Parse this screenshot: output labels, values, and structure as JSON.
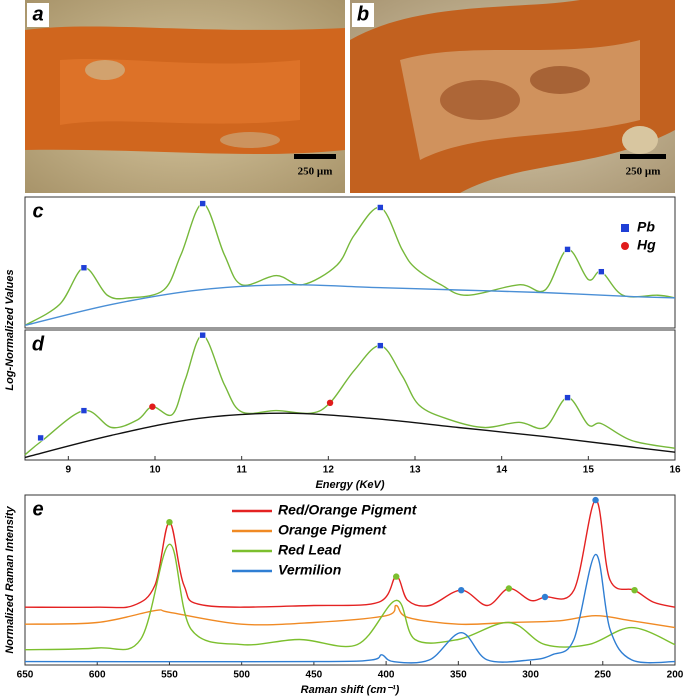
{
  "photos": [
    {
      "label": "a",
      "scale_bar": "250 µm"
    },
    {
      "label": "b",
      "scale_bar": "250 µm"
    }
  ],
  "chart_data": [
    {
      "type": "line",
      "label": "c",
      "ylabel": "Log-Normalized Values",
      "xlim": [
        8.5,
        16
      ],
      "ylim": [
        0,
        1
      ],
      "lines": [
        {
          "color": "#76b83a",
          "x": [
            8.5,
            8.9,
            9.18,
            9.45,
            9.7,
            10.1,
            10.3,
            10.55,
            10.8,
            11.0,
            11.4,
            11.7,
            12.1,
            12.3,
            12.6,
            12.85,
            13.0,
            13.3,
            13.6,
            14.2,
            14.5,
            14.76,
            15.0,
            15.15,
            15.4,
            15.8,
            16
          ],
          "values": [
            0.02,
            0.18,
            0.46,
            0.25,
            0.23,
            0.29,
            0.56,
            0.95,
            0.56,
            0.33,
            0.4,
            0.33,
            0.48,
            0.71,
            0.92,
            0.6,
            0.46,
            0.33,
            0.25,
            0.33,
            0.29,
            0.6,
            0.37,
            0.43,
            0.25,
            0.25,
            0.23
          ]
        },
        {
          "color": "#4a8fd6",
          "x": [
            8.5,
            9.5,
            10.5,
            11.5,
            12.5,
            13.5,
            14.5,
            15.5,
            16
          ],
          "values": [
            0.02,
            0.18,
            0.29,
            0.33,
            0.31,
            0.29,
            0.27,
            0.24,
            0.23
          ]
        }
      ],
      "markers": [
        {
          "name": "Pb",
          "color": "#1f3fd6",
          "marker": "square",
          "x": [
            9.18,
            10.55,
            12.6,
            14.76,
            15.15
          ],
          "values": [
            0.46,
            0.95,
            0.92,
            0.6,
            0.43
          ]
        },
        {
          "name": "Hg",
          "color": "#e01b1b",
          "marker": "circle",
          "x": [],
          "values": []
        }
      ]
    },
    {
      "type": "line",
      "label": "d",
      "xlabel": "Energy (KeV)",
      "xlim": [
        8.5,
        16
      ],
      "ylim": [
        0,
        1
      ],
      "xticks": [
        9,
        10,
        11,
        12,
        13,
        14,
        15,
        16
      ],
      "lines": [
        {
          "color": "#76b83a",
          "x": [
            8.5,
            8.7,
            9.18,
            9.5,
            9.8,
            9.97,
            10.2,
            10.35,
            10.55,
            10.8,
            11.0,
            11.4,
            11.8,
            12.02,
            12.3,
            12.6,
            12.85,
            13.05,
            13.4,
            13.8,
            14.2,
            14.5,
            14.76,
            15.0,
            15.15,
            15.5,
            16
          ],
          "values": [
            0.04,
            0.15,
            0.38,
            0.25,
            0.31,
            0.41,
            0.35,
            0.62,
            0.96,
            0.58,
            0.37,
            0.38,
            0.36,
            0.44,
            0.69,
            0.88,
            0.65,
            0.42,
            0.31,
            0.25,
            0.29,
            0.25,
            0.48,
            0.27,
            0.28,
            0.15,
            0.09
          ]
        },
        {
          "color": "#111111",
          "x": [
            8.5,
            9.5,
            10.5,
            11.5,
            12.5,
            13.5,
            14.5,
            15.5,
            16
          ],
          "values": [
            0.02,
            0.19,
            0.32,
            0.36,
            0.32,
            0.25,
            0.18,
            0.1,
            0.06
          ]
        }
      ],
      "markers": [
        {
          "color": "#1f3fd6",
          "marker": "square",
          "x": [
            8.68,
            9.18,
            10.55,
            12.6,
            14.76
          ],
          "values": [
            0.17,
            0.38,
            0.96,
            0.88,
            0.48
          ]
        },
        {
          "color": "#e01b1b",
          "marker": "circle",
          "x": [
            9.97,
            12.02
          ],
          "values": [
            0.41,
            0.44
          ]
        }
      ]
    },
    {
      "type": "line",
      "label": "e",
      "ylabel": "Normalized Raman Intensity",
      "xlabel": "Raman shift (cm⁻¹)",
      "xlim": [
        650,
        200
      ],
      "ylim": [
        0,
        1
      ],
      "xticks": [
        650,
        600,
        550,
        500,
        450,
        400,
        350,
        300,
        250,
        200
      ],
      "lines": [
        {
          "name": "Red/Orange Pigment",
          "color": "#e42222",
          "x": [
            650,
            600,
            575,
            560,
            550,
            540,
            525,
            450,
            405,
            393,
            385,
            370,
            348,
            330,
            315,
            300,
            290,
            270,
            255,
            245,
            228,
            215,
            200
          ],
          "values": [
            0.34,
            0.34,
            0.35,
            0.47,
            0.84,
            0.47,
            0.35,
            0.35,
            0.37,
            0.52,
            0.38,
            0.35,
            0.44,
            0.35,
            0.45,
            0.38,
            0.4,
            0.44,
            0.97,
            0.5,
            0.44,
            0.37,
            0.34
          ]
        },
        {
          "name": "Orange Pigment",
          "color": "#f08a24",
          "x": [
            650,
            600,
            560,
            550,
            500,
            450,
            400,
            393,
            385,
            350,
            315,
            280,
            255,
            230,
            200
          ],
          "values": [
            0.24,
            0.25,
            0.32,
            0.31,
            0.24,
            0.25,
            0.29,
            0.35,
            0.28,
            0.24,
            0.25,
            0.26,
            0.29,
            0.26,
            0.22
          ]
        },
        {
          "name": "Red Lead",
          "color": "#7cbf2e",
          "x": [
            650,
            600,
            570,
            550,
            535,
            500,
            460,
            420,
            393,
            380,
            350,
            315,
            290,
            260,
            230,
            200
          ],
          "values": [
            0.09,
            0.1,
            0.15,
            0.71,
            0.21,
            0.12,
            0.15,
            0.12,
            0.38,
            0.15,
            0.15,
            0.25,
            0.12,
            0.12,
            0.22,
            0.12
          ]
        },
        {
          "name": "Vermilion",
          "color": "#2f7ed3",
          "x": [
            650,
            450,
            410,
            403,
            395,
            370,
            348,
            330,
            300,
            285,
            270,
            255,
            245,
            230,
            200
          ],
          "values": [
            0.02,
            0.02,
            0.03,
            0.06,
            0.02,
            0.03,
            0.19,
            0.03,
            0.03,
            0.06,
            0.15,
            0.65,
            0.21,
            0.03,
            0.02
          ]
        }
      ],
      "markers": [
        {
          "color": "#7cbf2e",
          "marker": "circle",
          "x": [
            550,
            393,
            315,
            228
          ],
          "values": [
            0.84,
            0.52,
            0.45,
            0.44
          ]
        },
        {
          "color": "#2f7ed3",
          "marker": "circle",
          "x": [
            348,
            290,
            255
          ],
          "values": [
            0.44,
            0.4,
            0.97
          ]
        }
      ]
    }
  ]
}
